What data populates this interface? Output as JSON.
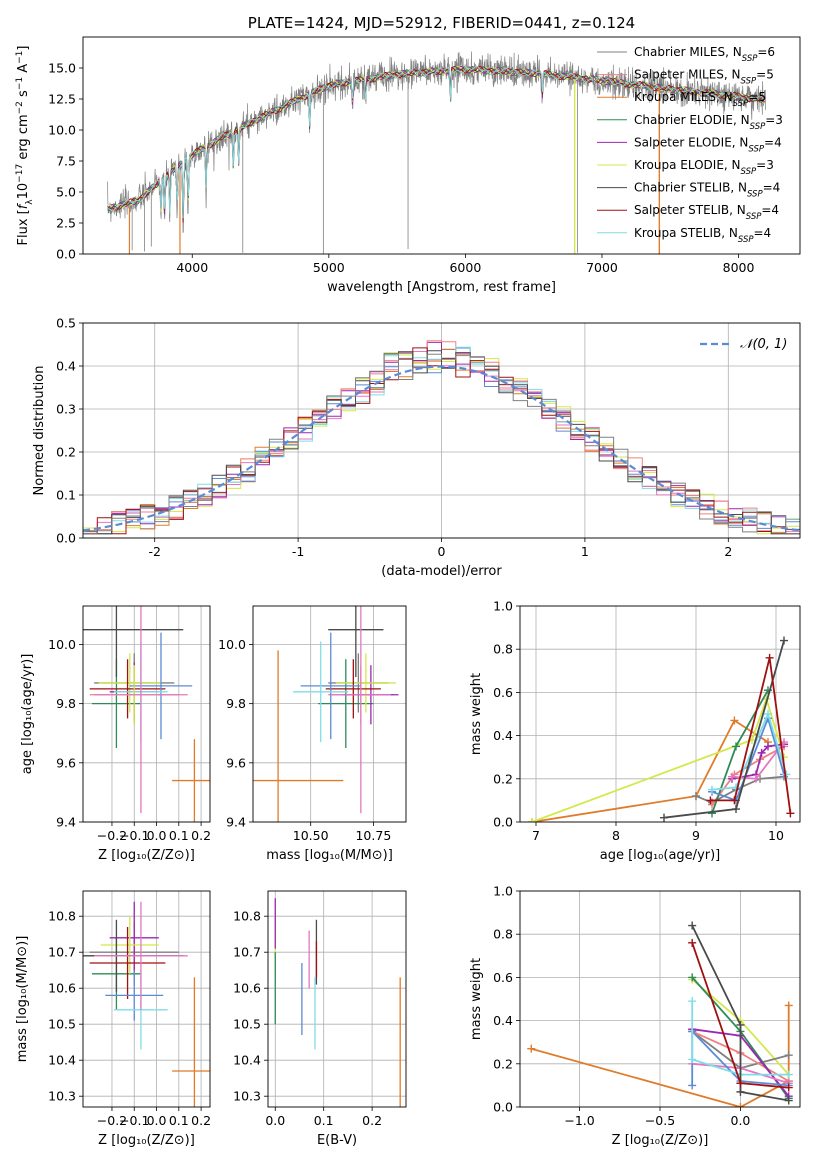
{
  "colors": {
    "gray": "#808080",
    "orange": "#e07b2a",
    "lime": "#d4e84a",
    "green": "#2e8b57",
    "purple": "#9c27b0",
    "salmon": "#f08080",
    "blue": "#5b8bd6",
    "pink": "#e377c2",
    "cyan": "#7fdde6",
    "darkgray": "#4a4a4a",
    "darkred": "#a01010"
  },
  "chart_data": [
    {
      "id": "spectrum",
      "type": "line",
      "title": "PLATE=1424, MJD=52912, FIBERID=0441, z=0.124",
      "xlabel": "wavelength [Angstrom, rest frame]",
      "ylabel_parts": [
        "Flux [",
        "f",
        "λ",
        "10",
        "−17",
        " erg cm",
        "−2",
        " s",
        "−1",
        " A",
        "−1",
        "]"
      ],
      "xlim": [
        3200,
        8450
      ],
      "ylim": [
        0,
        17.5
      ],
      "xticks": [
        4000,
        5000,
        6000,
        7000,
        8000
      ],
      "yticks": [
        0.0,
        2.5,
        5.0,
        7.5,
        10.0,
        12.5,
        15.0
      ],
      "ytick_labels": [
        "0.0",
        "2.5",
        "5.0",
        "7.5",
        "10.0",
        "12.5",
        "15.0"
      ],
      "legend": [
        {
          "label": "Chabrier MILES, N",
          "sub": "SSP",
          "val": "=6",
          "color": "#808080"
        },
        {
          "label": "Salpeter MILES, N",
          "sub": "SSP",
          "val": "=5",
          "color": "#f08080"
        },
        {
          "label": "Kroupa MILES, N",
          "sub": "SSP",
          "val": "=5",
          "color": "#e07b2a"
        },
        {
          "label": "Chabrier ELODIE, N",
          "sub": "SSP",
          "val": "=3",
          "color": "#2e8b57"
        },
        {
          "label": "Salpeter ELODIE, N",
          "sub": "SSP",
          "val": "=4",
          "color": "#9c27b0"
        },
        {
          "label": "Kroupa ELODIE, N",
          "sub": "SSP",
          "val": "=3",
          "color": "#d4e84a"
        },
        {
          "label": "Chabrier STELIB, N",
          "sub": "SSP",
          "val": "=4",
          "color": "#4a4a4a"
        },
        {
          "label": "Salpeter STELIB, N",
          "sub": "SSP",
          "val": "=4",
          "color": "#a01010"
        },
        {
          "label": "Kroupa STELIB, N",
          "sub": "SSP",
          "val": "=4",
          "color": "#7fdde6"
        }
      ],
      "continuum": {
        "wavelength": [
          3400,
          3600,
          3800,
          4000,
          4200,
          4500,
          4800,
          5000,
          5500,
          6000,
          6500,
          7000,
          7500,
          8000,
          8200
        ],
        "flux": [
          3.7,
          4.3,
          6.2,
          8.0,
          9.3,
          11.0,
          12.6,
          13.6,
          14.5,
          14.9,
          14.6,
          14.0,
          13.3,
          12.7,
          12.4
        ]
      }
    },
    {
      "id": "residuals",
      "type": "line",
      "xlabel": "(data-model)/error",
      "ylabel": "Normed distribution",
      "xlim": [
        -2.5,
        2.5
      ],
      "ylim": [
        0,
        0.5
      ],
      "xticks": [
        -2,
        -1,
        0,
        1,
        2
      ],
      "yticks": [
        0.0,
        0.1,
        0.2,
        0.3,
        0.4,
        0.5
      ],
      "ytick_labels": [
        "0.0",
        "0.1",
        "0.2",
        "0.3",
        "0.4",
        "0.5"
      ],
      "legend": [
        {
          "label": "𝒩(0, 1)",
          "color": "#5b8bd6"
        }
      ],
      "grid": true
    },
    {
      "id": "age-vs-Z",
      "type": "scatter",
      "xlabel": "Z [log₁₀(Z/Z⊙)]",
      "ylabel": "age  [log₁₀(age/yr)]",
      "xlim": [
        -0.33,
        0.24
      ],
      "ylim": [
        9.4,
        10.13
      ],
      "xticks": [
        -0.2,
        -0.1,
        0.0,
        0.1,
        0.2
      ],
      "xtick_labels": [
        "−0.2",
        "−0.1",
        "0.0",
        "0.1",
        "0.2"
      ],
      "yticks": [
        9.4,
        9.6,
        9.8,
        10.0
      ],
      "ytick_labels": [
        "9.4",
        "9.6",
        "9.8",
        "10.0"
      ],
      "points": [
        {
          "x": -0.1,
          "y": 9.87,
          "xerr": 0.18,
          "yerr": 0.1,
          "color": "#808080"
        },
        {
          "x": -0.1,
          "y": 9.83,
          "xerr": 0.2,
          "yerr": 0.1,
          "color": "#f08080"
        },
        {
          "x": 0.17,
          "y": 9.54,
          "xerr": 0.1,
          "yerr": 0.14,
          "color": "#e07b2a"
        },
        {
          "x": -0.18,
          "y": 9.8,
          "xerr": 0.11,
          "yerr": 0.15,
          "color": "#2e8b57"
        },
        {
          "x": -0.1,
          "y": 9.84,
          "xerr": 0.11,
          "yerr": 0.1,
          "color": "#9c27b0"
        },
        {
          "x": -0.12,
          "y": 9.87,
          "xerr": 0.14,
          "yerr": 0.1,
          "color": "#d4e84a"
        },
        {
          "x": -0.18,
          "y": 10.05,
          "xerr": 0.3,
          "yerr": 0.16,
          "color": "#4a4a4a"
        },
        {
          "x": -0.13,
          "y": 9.85,
          "xerr": 0.17,
          "yerr": 0.1,
          "color": "#a01010"
        },
        {
          "x": 0.02,
          "y": 9.86,
          "xerr": 0.14,
          "yerr": 0.18,
          "color": "#5b8bd6"
        },
        {
          "x": -0.07,
          "y": 9.84,
          "xerr": 0.12,
          "yerr": 0.17,
          "color": "#7fdde6"
        },
        {
          "x": -0.1,
          "y": 9.83,
          "xerr": 0.11,
          "yerr": 0.1,
          "color": "#d4e84a"
        },
        {
          "x": -0.07,
          "y": 9.83,
          "xerr": 0.21,
          "yerr": 0.4,
          "color": "#e377c2"
        }
      ]
    },
    {
      "id": "age-vs-mass",
      "type": "scatter",
      "xlabel": "mass [log₁₀(M/M⊙)]",
      "xlim": [
        10.27,
        10.88
      ],
      "ylim": [
        9.4,
        10.13
      ],
      "xticks": [
        10.5,
        10.75
      ],
      "xtick_labels": [
        "10.50",
        "10.75"
      ],
      "yticks": [
        9.4,
        9.6,
        9.8,
        10.0
      ],
      "ytick_labels": [
        "9.4",
        "9.6",
        "9.8",
        "10.0"
      ],
      "points": [
        {
          "x": 10.69,
          "y": 9.87,
          "xerr": 0.12,
          "yerr": 0.1,
          "color": "#808080"
        },
        {
          "x": 10.7,
          "y": 9.83,
          "xerr": 0.13,
          "yerr": 0.1,
          "color": "#f08080"
        },
        {
          "x": 10.37,
          "y": 9.54,
          "xerr": 0.26,
          "yerr": 0.44,
          "color": "#e07b2a"
        },
        {
          "x": 10.64,
          "y": 9.8,
          "xerr": 0.11,
          "yerr": 0.15,
          "color": "#2e8b57"
        },
        {
          "x": 10.74,
          "y": 9.83,
          "xerr": 0.11,
          "yerr": 0.1,
          "color": "#9c27b0"
        },
        {
          "x": 10.72,
          "y": 9.87,
          "xerr": 0.12,
          "yerr": 0.1,
          "color": "#d4e84a"
        },
        {
          "x": 10.68,
          "y": 10.05,
          "xerr": 0.11,
          "yerr": 0.16,
          "color": "#4a4a4a"
        },
        {
          "x": 10.67,
          "y": 9.85,
          "xerr": 0.11,
          "yerr": 0.1,
          "color": "#a01010"
        },
        {
          "x": 10.58,
          "y": 9.86,
          "xerr": 0.12,
          "yerr": 0.18,
          "color": "#5b8bd6"
        },
        {
          "x": 10.54,
          "y": 9.84,
          "xerr": 0.11,
          "yerr": 0.17,
          "color": "#7fdde6"
        },
        {
          "x": 10.7,
          "y": 9.83,
          "xerr": 0.12,
          "yerr": 0.4,
          "color": "#e377c2"
        }
      ]
    },
    {
      "id": "weight-vs-age",
      "type": "line",
      "xlabel": "age  [log₁₀(age/yr)]",
      "ylabel": "mass weight",
      "xlim": [
        6.8,
        10.3
      ],
      "ylim": [
        0,
        1.0
      ],
      "xticks": [
        7,
        8,
        9,
        10
      ],
      "yticks": [
        0.0,
        0.2,
        0.4,
        0.6,
        0.8,
        1.0
      ],
      "ytick_labels": [
        "0.0",
        "0.2",
        "0.4",
        "0.6",
        "0.8",
        "1.0"
      ],
      "grid": true,
      "series": [
        {
          "color": "#e07b2a",
          "x": [
            6.95,
            9.0,
            9.48,
            9.9
          ],
          "y": [
            0.0,
            0.12,
            0.47,
            0.37
          ]
        },
        {
          "color": "#d4e84a",
          "x": [
            6.95,
            9.7,
            9.88,
            10.1
          ],
          "y": [
            0.0,
            0.38,
            0.57,
            0.3
          ]
        },
        {
          "color": "#808080",
          "x": [
            9.0,
            9.2,
            9.5,
            9.8,
            10.1
          ],
          "y": [
            0.12,
            0.09,
            0.15,
            0.2,
            0.21
          ]
        },
        {
          "color": "#f08080",
          "x": [
            9.2,
            9.48,
            9.8,
            10.1
          ],
          "y": [
            0.08,
            0.22,
            0.29,
            0.35
          ]
        },
        {
          "color": "#2e8b57",
          "x": [
            9.2,
            9.5,
            9.9
          ],
          "y": [
            0.04,
            0.35,
            0.61
          ]
        },
        {
          "color": "#9c27b0",
          "x": [
            9.45,
            9.75,
            9.82,
            9.9,
            10.1
          ],
          "y": [
            0.2,
            0.22,
            0.32,
            0.35,
            0.36
          ]
        },
        {
          "color": "#e377c2",
          "x": [
            9.45,
            9.75,
            10.1
          ],
          "y": [
            0.21,
            0.2,
            0.37
          ]
        },
        {
          "color": "#5b8bd6",
          "x": [
            9.2,
            9.5,
            9.9,
            10.1
          ],
          "y": [
            0.14,
            0.1,
            0.48,
            0.22
          ]
        },
        {
          "color": "#7fdde6",
          "x": [
            9.2,
            9.5,
            9.9,
            10.13
          ],
          "y": [
            0.15,
            0.16,
            0.5,
            0.22
          ]
        },
        {
          "color": "#4a4a4a",
          "x": [
            8.6,
            9.5,
            10.1
          ],
          "y": [
            0.02,
            0.06,
            0.84
          ]
        },
        {
          "color": "#a01010",
          "x": [
            9.18,
            9.48,
            9.92,
            10.18
          ],
          "y": [
            0.1,
            0.1,
            0.76,
            0.04
          ]
        }
      ]
    },
    {
      "id": "mass-vs-Z",
      "type": "scatter",
      "xlabel": "Z [log₁₀(Z/Z⊙)]",
      "ylabel": "mass [log₁₀(M/M⊙)]",
      "xlim": [
        -0.33,
        0.24
      ],
      "ylim": [
        10.27,
        10.87
      ],
      "xticks": [
        -0.2,
        -0.1,
        0.0,
        0.1,
        0.2
      ],
      "xtick_labels": [
        "−0.2",
        "−0.1",
        "0.0",
        "0.1",
        "0.2"
      ],
      "yticks": [
        10.3,
        10.4,
        10.5,
        10.6,
        10.7,
        10.8
      ],
      "ytick_labels": [
        "10.3",
        "10.4",
        "10.5",
        "10.6",
        "10.7",
        "10.8"
      ],
      "points": [
        {
          "x": -0.1,
          "y": 10.7,
          "xerr": 0.2,
          "yerr": 0.08,
          "color": "#808080"
        },
        {
          "x": -0.1,
          "y": 10.69,
          "xerr": 0.2,
          "yerr": 0.08,
          "color": "#f08080"
        },
        {
          "x": 0.17,
          "y": 10.37,
          "xerr": 0.1,
          "yerr": 0.26,
          "color": "#e07b2a"
        },
        {
          "x": -0.18,
          "y": 10.64,
          "xerr": 0.11,
          "yerr": 0.1,
          "color": "#2e8b57"
        },
        {
          "x": -0.1,
          "y": 10.74,
          "xerr": 0.11,
          "yerr": 0.1,
          "color": "#9c27b0"
        },
        {
          "x": -0.12,
          "y": 10.72,
          "xerr": 0.13,
          "yerr": 0.08,
          "color": "#d4e84a"
        },
        {
          "x": -0.18,
          "y": 10.69,
          "xerr": 0.3,
          "yerr": 0.1,
          "color": "#4a4a4a"
        },
        {
          "x": -0.13,
          "y": 10.67,
          "xerr": 0.17,
          "yerr": 0.1,
          "color": "#a01010"
        },
        {
          "x": -0.1,
          "y": 10.58,
          "xerr": 0.13,
          "yerr": 0.07,
          "color": "#5b8bd6"
        },
        {
          "x": -0.07,
          "y": 10.54,
          "xerr": 0.12,
          "yerr": 0.11,
          "color": "#7fdde6"
        },
        {
          "x": -0.07,
          "y": 10.69,
          "xerr": 0.21,
          "yerr": 0.15,
          "color": "#e377c2"
        }
      ]
    },
    {
      "id": "mass-vs-EBV",
      "type": "scatter",
      "xlabel": "E(B-V)",
      "xlim": [
        -0.015,
        0.27
      ],
      "ylim": [
        10.27,
        10.87
      ],
      "xticks": [
        0.0,
        0.1,
        0.2
      ],
      "xtick_labels": [
        "0.0",
        "0.1",
        "0.2"
      ],
      "yticks": [
        10.3,
        10.4,
        10.5,
        10.6,
        10.7,
        10.8
      ],
      "ytick_labels": [
        "10.3",
        "10.4",
        "10.5",
        "10.6",
        "10.7",
        "10.8"
      ],
      "points": [
        {
          "x": 0.0,
          "y": 10.72,
          "yerr": 0.08,
          "color": "#d4e84a"
        },
        {
          "x": 0.0,
          "y": 10.78,
          "yerr": 0.07,
          "color": "#9c27b0"
        },
        {
          "x": 0.0,
          "y": 10.6,
          "yerr": 0.1,
          "color": "#2e8b57"
        },
        {
          "x": 0.055,
          "y": 10.57,
          "yerr": 0.1,
          "color": "#5b8bd6"
        },
        {
          "x": 0.07,
          "y": 10.68,
          "yerr": 0.08,
          "color": "#e377c2"
        },
        {
          "x": 0.082,
          "y": 10.53,
          "yerr": 0.1,
          "color": "#7fdde6"
        },
        {
          "x": 0.085,
          "y": 10.7,
          "yerr": 0.09,
          "color": "#4a4a4a"
        },
        {
          "x": 0.085,
          "y": 10.68,
          "yerr": 0.05,
          "color": "#a01010"
        },
        {
          "x": 0.258,
          "y": 10.45,
          "yerr": 0.18,
          "color": "#e07b2a"
        }
      ]
    },
    {
      "id": "weight-vs-Z",
      "type": "line",
      "xlabel": "Z [log₁₀(Z/Z⊙)]",
      "ylabel": "mass weight",
      "xlim": [
        -1.37,
        0.37
      ],
      "ylim": [
        0,
        1.0
      ],
      "xticks": [
        -1.0,
        -0.5,
        0.0
      ],
      "xtick_labels": [
        "−1.0",
        "−0.5",
        "0.0"
      ],
      "yticks": [
        0.0,
        0.2,
        0.4,
        0.6,
        0.8,
        1.0
      ],
      "ytick_labels": [
        "0.0",
        "0.2",
        "0.4",
        "0.6",
        "0.8",
        "1.0"
      ],
      "grid": true,
      "series": [
        {
          "color": "#e07b2a",
          "x": [
            -1.3,
            0.0,
            0.3,
            0.3
          ],
          "y": [
            0.27,
            0.0,
            0.12,
            0.47
          ]
        },
        {
          "color": "#d4e84a",
          "x": [
            -0.3,
            0.0,
            0.3
          ],
          "y": [
            0.59,
            0.4,
            0.15
          ]
        },
        {
          "color": "#808080",
          "x": [
            -0.3,
            0.0,
            0.3
          ],
          "y": [
            0.35,
            0.18,
            0.24
          ]
        },
        {
          "color": "#f08080",
          "x": [
            -0.3,
            0.0,
            0.3
          ],
          "y": [
            0.35,
            0.25,
            0.12
          ]
        },
        {
          "color": "#2e8b57",
          "x": [
            -0.3,
            0.0,
            0.3
          ],
          "y": [
            0.6,
            0.35,
            0.04
          ]
        },
        {
          "color": "#9c27b0",
          "x": [
            -0.3,
            0.0,
            0.3
          ],
          "y": [
            0.36,
            0.33,
            0.05
          ]
        },
        {
          "color": "#e377c2",
          "x": [
            -0.3,
            0.0,
            0.3
          ],
          "y": [
            0.2,
            0.18,
            0.11
          ]
        },
        {
          "color": "#5b8bd6",
          "x": [
            -0.3,
            -0.3,
            0.0,
            0.3
          ],
          "y": [
            0.1,
            0.35,
            0.12,
            0.1
          ]
        },
        {
          "color": "#7fdde6",
          "x": [
            -0.3,
            -0.3,
            0.0,
            0.3
          ],
          "y": [
            0.49,
            0.22,
            0.15,
            0.15
          ]
        },
        {
          "color": "#4a4a4a",
          "x": [
            -0.3,
            0.0,
            0.0,
            0.3
          ],
          "y": [
            0.84,
            0.38,
            0.07,
            0.03
          ]
        },
        {
          "color": "#a01010",
          "x": [
            -0.3,
            0.0,
            0.3
          ],
          "y": [
            0.76,
            0.11,
            0.09
          ]
        }
      ]
    }
  ]
}
